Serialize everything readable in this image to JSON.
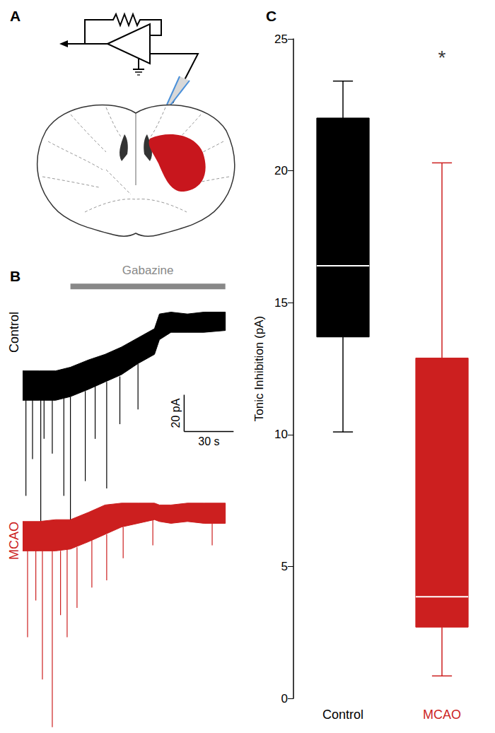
{
  "panel_labels": [
    "A",
    "B",
    "C"
  ],
  "chart_data": [
    {
      "type": "trace",
      "xlim": [
        0,
        130
      ],
      "ylim": [
        -188,
        56
      ],
      "tick_labels": false,
      "drug": {
        "label": "Gabazine",
        "start": 29,
        "end": 123,
        "y": 54,
        "color": "#888888"
      },
      "scale_bar": {
        "x": 98,
        "y": -25,
        "dx": 30,
        "dy": 20,
        "x_label": "30 s",
        "y_label": "20 pA"
      },
      "series": [
        {
          "name": "Control",
          "color": "#000000",
          "t": [
            0,
            10,
            20,
            29,
            40,
            50,
            60,
            70,
            80,
            83,
            90,
            100,
            110,
            123
          ],
          "upper": [
            8,
            8,
            8,
            10,
            14,
            17,
            21,
            26,
            31,
            39,
            40,
            39,
            40,
            40
          ],
          "lower": [
            -8,
            -8,
            -8,
            -6,
            -2,
            2,
            6,
            12,
            17,
            25,
            29,
            29,
            29,
            30
          ],
          "spikes": [
            [
              2,
              -8,
              -60
            ],
            [
              6,
              -8,
              -40
            ],
            [
              11,
              -8,
              -75
            ],
            [
              13,
              -8,
              -29
            ],
            [
              18,
              -8,
              -37
            ],
            [
              25,
              -7,
              -60
            ],
            [
              29,
              -6,
              -75
            ],
            [
              38,
              -3,
              -52
            ],
            [
              44,
              0,
              -29
            ],
            [
              51,
              2,
              -56
            ],
            [
              59,
              5,
              -21
            ],
            [
              70,
              12,
              -13
            ]
          ]
        },
        {
          "name": "MCAO",
          "color": "#cc1f1f",
          "t": [
            0,
            10,
            20,
            29,
            40,
            50,
            60,
            70,
            80,
            83,
            90,
            100,
            110,
            123
          ],
          "upper": [
            -74,
            -74,
            -73,
            -73,
            -69,
            -65,
            -64,
            -64,
            -64,
            -65,
            -65,
            -64,
            -64,
            -64
          ],
          "lower": [
            -90,
            -90,
            -90,
            -89,
            -85,
            -81,
            -77,
            -75,
            -73,
            -74,
            -75,
            -74,
            -75,
            -75
          ],
          "spikes": [
            [
              3,
              -90,
              -137
            ],
            [
              8,
              -90,
              -117
            ],
            [
              12,
              -90,
              -160
            ],
            [
              18,
              -90,
              -186
            ],
            [
              23,
              -90,
              -125
            ],
            [
              27,
              -89,
              -137
            ],
            [
              33,
              -88,
              -121
            ],
            [
              42,
              -84,
              -110
            ],
            [
              51,
              -81,
              -106
            ],
            [
              61,
              -77,
              -94
            ],
            [
              79,
              -73,
              -87
            ],
            [
              115,
              -75,
              -87
            ]
          ]
        }
      ]
    },
    {
      "type": "box",
      "ylabel": "Tonic Inhibition (pA)",
      "categories": [
        "Control",
        "MCAO"
      ],
      "values": [
        [
          10.1,
          13.7,
          16.4,
          22.0,
          23.4
        ],
        [
          0.85,
          2.7,
          3.85,
          12.9,
          20.3
        ]
      ],
      "colors": [
        "#000000",
        "#cc1f1f"
      ],
      "ylim": [
        0,
        25
      ],
      "yticks": [
        0,
        5,
        10,
        15,
        20,
        25
      ],
      "annotations": [
        {
          "text": "*",
          "category": "MCAO",
          "y": 24.3
        }
      ]
    }
  ]
}
